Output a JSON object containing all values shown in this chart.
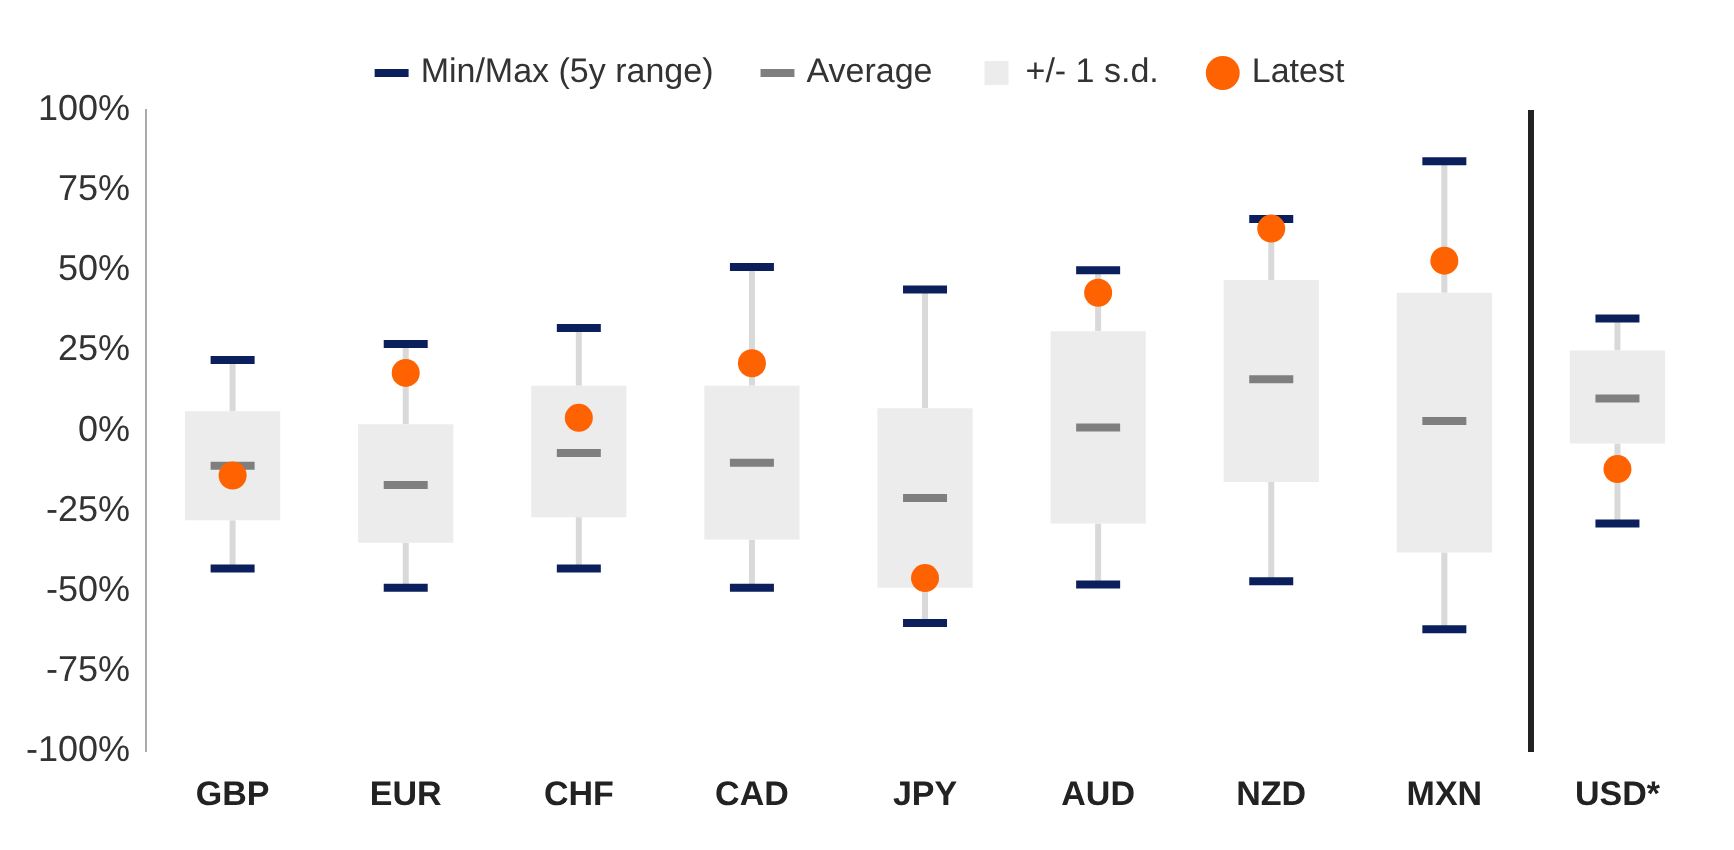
{
  "chart_data": {
    "type": "box",
    "categories": [
      "GBP",
      "EUR",
      "CHF",
      "CAD",
      "JPY",
      "AUD",
      "NZD",
      "MXN",
      "USD*"
    ],
    "ylim": [
      -100,
      100
    ],
    "yticks": [
      {
        "value": -100,
        "label": "-100%"
      },
      {
        "value": -75,
        "label": "-75%"
      },
      {
        "value": -50,
        "label": "-50%"
      },
      {
        "value": -25,
        "label": "-25%"
      },
      {
        "value": 0,
        "label": "0%"
      },
      {
        "value": 25,
        "label": "25%"
      },
      {
        "value": 50,
        "label": "50%"
      },
      {
        "value": 75,
        "label": "75%"
      },
      {
        "value": 100,
        "label": "100%"
      }
    ],
    "grid": false,
    "legend": "top",
    "annotations": [
      "Min/Max (5y range)",
      "Average"
    ],
    "series": [
      {
        "type": "box",
        "name": "+/- 1 s.d.",
        "color": "#ececec",
        "boxes": [
          {
            "low": -43,
            "q1": -28,
            "median": -11,
            "q3": 6,
            "high": 22
          },
          {
            "low": -49,
            "q1": -35,
            "median": -17,
            "q3": 2,
            "high": 27
          },
          {
            "low": -43,
            "q1": -27,
            "median": -7,
            "q3": 14,
            "high": 32
          },
          {
            "low": -49,
            "q1": -34,
            "median": -10,
            "q3": 14,
            "high": 51
          },
          {
            "low": -60,
            "q1": -49,
            "median": -21,
            "q3": 7,
            "high": 44
          },
          {
            "low": -48,
            "q1": -29,
            "median": 1,
            "q3": 31,
            "high": 50
          },
          {
            "low": -47,
            "q1": -16,
            "median": 16,
            "q3": 47,
            "high": 66
          },
          {
            "low": -62,
            "q1": -38,
            "median": 3,
            "q3": 43,
            "high": 84
          },
          {
            "low": -29,
            "q1": -4,
            "median": 10,
            "q3": 25,
            "high": 35
          }
        ]
      },
      {
        "type": "scatter",
        "name": "Latest",
        "color": "#ff6200",
        "marker": "circle",
        "x": [
          "GBP",
          "EUR",
          "CHF",
          "CAD",
          "JPY",
          "AUD",
          "NZD",
          "MXN",
          "USD*"
        ],
        "values": [
          -14,
          18,
          4,
          21,
          -46,
          43,
          63,
          53,
          -12
        ]
      }
    ]
  }
}
